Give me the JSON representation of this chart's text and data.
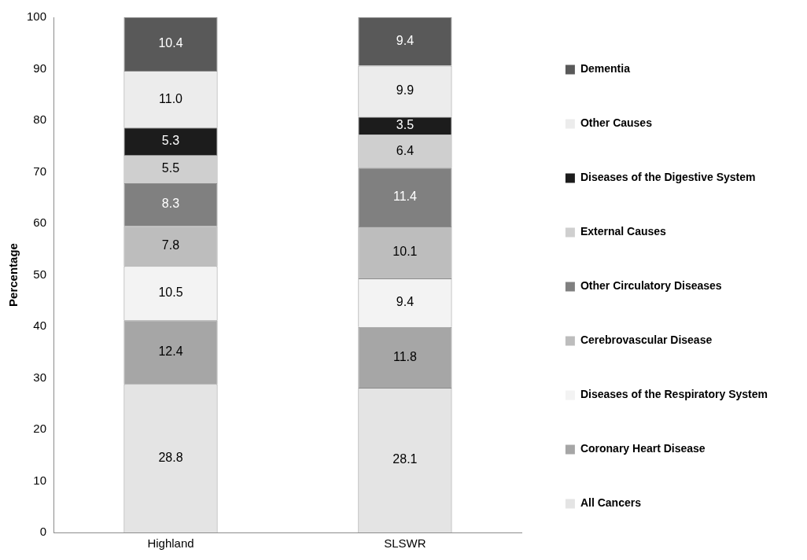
{
  "chart_data": {
    "type": "bar",
    "stacked": true,
    "ylabel": "Percentage",
    "categories": [
      "Highland",
      "SLSWR"
    ],
    "ylim": [
      0,
      100
    ],
    "yticks": [
      0,
      10,
      20,
      30,
      40,
      50,
      60,
      70,
      80,
      90,
      100
    ],
    "grid": false,
    "legend": "right",
    "data_labels": true,
    "series": [
      {
        "name": "All Cancers",
        "color": "#e4e4e4",
        "values": [
          28.8,
          28.1
        ],
        "value_labels": [
          "28.8",
          "28.1"
        ]
      },
      {
        "name": "Coronary Heart Disease",
        "color": "#a6a6a6",
        "values": [
          12.4,
          11.8
        ],
        "value_labels": [
          "12.4",
          "11.8"
        ]
      },
      {
        "name": "Diseases of the Respiratory System",
        "color": "#f3f3f3",
        "values": [
          10.5,
          9.4
        ],
        "value_labels": [
          "10.5",
          "9.4"
        ]
      },
      {
        "name": "Cerebrovascular Disease",
        "color": "#bdbdbd",
        "values": [
          7.8,
          10.1
        ],
        "value_labels": [
          "7.8",
          "10.1"
        ]
      },
      {
        "name": "Other Circulatory Diseases",
        "color": "#808080",
        "values": [
          8.3,
          11.4
        ],
        "value_labels": [
          "8.3",
          "11.4"
        ]
      },
      {
        "name": "External Causes",
        "color": "#cfcfcf",
        "values": [
          5.5,
          6.4
        ],
        "value_labels": [
          "5.5",
          "6.4"
        ]
      },
      {
        "name": "Diseases of the Digestive System",
        "color": "#1c1c1c",
        "values": [
          5.3,
          3.5
        ],
        "value_labels": [
          "5.3",
          "3.5"
        ]
      },
      {
        "name": "Other Causes",
        "color": "#ececec",
        "values": [
          11.0,
          9.9
        ],
        "value_labels": [
          "11.0",
          "9.9"
        ]
      },
      {
        "name": "Dementia",
        "color": "#595959",
        "values": [
          10.4,
          9.4
        ],
        "value_labels": [
          "10.4",
          "9.4"
        ]
      }
    ]
  }
}
